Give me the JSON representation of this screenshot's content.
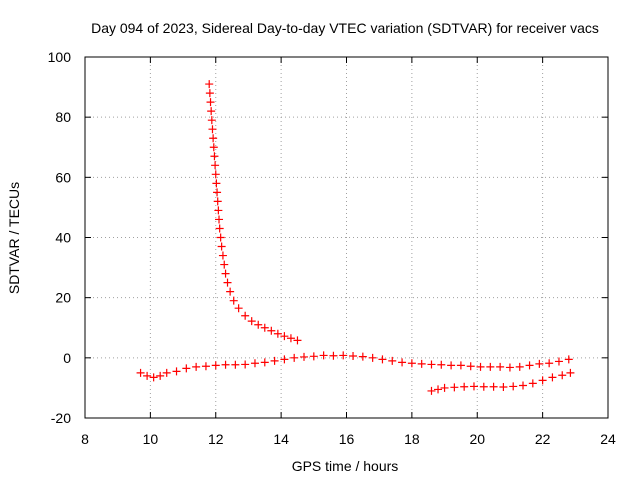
{
  "chart_data": {
    "type": "scatter",
    "title": "Day 094 of 2023, Sidereal Day-to-day VTEC variation (SDTVAR) for receiver vacs",
    "xlabel": "GPS time / hours",
    "ylabel": "SDTVAR / TECUs",
    "xlim": [
      8,
      24
    ],
    "ylim": [
      -20,
      100
    ],
    "xticks": [
      8,
      10,
      12,
      14,
      16,
      18,
      20,
      22,
      24
    ],
    "yticks": [
      -20,
      0,
      20,
      40,
      60,
      80,
      100
    ],
    "grid": true,
    "marker": "+",
    "color": "#ff0000",
    "series": [
      {
        "name": "descending arc",
        "points": [
          [
            11.8,
            91
          ],
          [
            11.82,
            88
          ],
          [
            11.84,
            85
          ],
          [
            11.86,
            82
          ],
          [
            11.88,
            79
          ],
          [
            11.9,
            76
          ],
          [
            11.92,
            73
          ],
          [
            11.94,
            70
          ],
          [
            11.96,
            67
          ],
          [
            11.98,
            64
          ],
          [
            12.0,
            61
          ],
          [
            12.02,
            58
          ],
          [
            12.04,
            55
          ],
          [
            12.06,
            52
          ],
          [
            12.08,
            49
          ],
          [
            12.1,
            46
          ],
          [
            12.12,
            43
          ],
          [
            12.15,
            40
          ],
          [
            12.18,
            37
          ],
          [
            12.22,
            34
          ],
          [
            12.26,
            31
          ],
          [
            12.3,
            28
          ],
          [
            12.36,
            25
          ],
          [
            12.44,
            22
          ],
          [
            12.55,
            19
          ],
          [
            12.7,
            16.5
          ],
          [
            12.9,
            14
          ],
          [
            13.1,
            12.2
          ],
          [
            13.3,
            11
          ],
          [
            13.5,
            10
          ],
          [
            13.7,
            9
          ],
          [
            13.9,
            8
          ],
          [
            14.1,
            7.2
          ],
          [
            14.3,
            6.5
          ],
          [
            14.5,
            5.8
          ]
        ]
      },
      {
        "name": "main band",
        "points": [
          [
            9.7,
            -5
          ],
          [
            9.9,
            -6
          ],
          [
            10.1,
            -6.5
          ],
          [
            10.3,
            -6
          ],
          [
            10.5,
            -5
          ],
          [
            10.8,
            -4.5
          ],
          [
            11.1,
            -3.5
          ],
          [
            11.4,
            -3
          ],
          [
            11.7,
            -2.8
          ],
          [
            12.0,
            -2.5
          ],
          [
            12.3,
            -2.3
          ],
          [
            12.6,
            -2.3
          ],
          [
            12.9,
            -2.2
          ],
          [
            13.2,
            -1.8
          ],
          [
            13.5,
            -1.5
          ],
          [
            13.8,
            -1
          ],
          [
            14.1,
            -0.5
          ],
          [
            14.4,
            0
          ],
          [
            14.7,
            0.3
          ],
          [
            15.0,
            0.5
          ],
          [
            15.3,
            0.8
          ],
          [
            15.6,
            0.7
          ],
          [
            15.9,
            0.8
          ],
          [
            16.2,
            0.6
          ],
          [
            16.5,
            0.4
          ],
          [
            16.8,
            0
          ],
          [
            17.1,
            -0.5
          ],
          [
            17.4,
            -1
          ],
          [
            17.7,
            -1.5
          ],
          [
            18.0,
            -1.8
          ],
          [
            18.3,
            -2
          ],
          [
            18.6,
            -2.2
          ],
          [
            18.9,
            -2.3
          ],
          [
            19.2,
            -2.5
          ],
          [
            19.5,
            -2.5
          ],
          [
            19.8,
            -2.8
          ],
          [
            20.1,
            -3
          ],
          [
            20.4,
            -3
          ],
          [
            20.7,
            -3
          ],
          [
            21.0,
            -3.2
          ],
          [
            21.3,
            -3
          ],
          [
            21.6,
            -2.5
          ],
          [
            21.9,
            -2
          ],
          [
            22.2,
            -1.8
          ],
          [
            22.5,
            -1.2
          ],
          [
            22.8,
            -0.5
          ]
        ]
      },
      {
        "name": "lower arc",
        "points": [
          [
            18.6,
            -11
          ],
          [
            18.8,
            -10.5
          ],
          [
            19.0,
            -10
          ],
          [
            19.3,
            -9.8
          ],
          [
            19.6,
            -9.6
          ],
          [
            19.9,
            -9.5
          ],
          [
            20.2,
            -9.6
          ],
          [
            20.5,
            -9.6
          ],
          [
            20.8,
            -9.7
          ],
          [
            21.1,
            -9.5
          ],
          [
            21.4,
            -9.2
          ],
          [
            21.7,
            -8.5
          ],
          [
            22.0,
            -7.5
          ],
          [
            22.3,
            -6.5
          ],
          [
            22.6,
            -5.8
          ],
          [
            22.85,
            -5
          ]
        ]
      }
    ]
  }
}
